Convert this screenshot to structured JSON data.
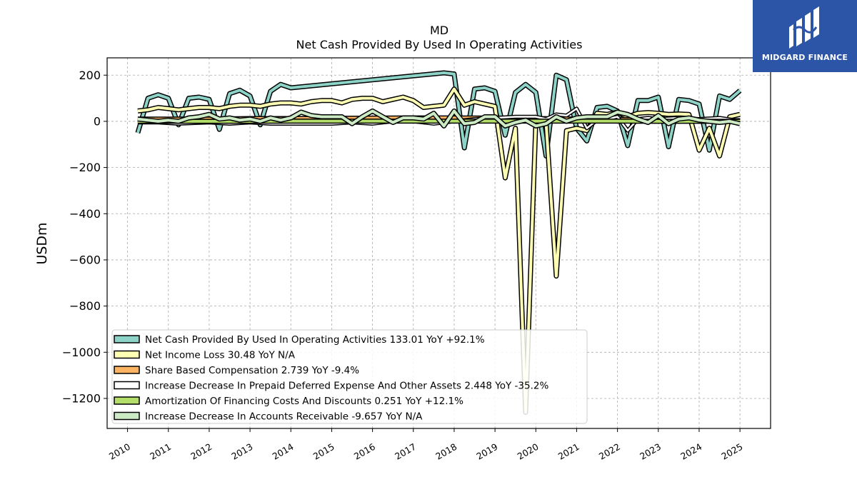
{
  "chart_data": {
    "type": "line",
    "title": "MD",
    "subtitle": "Net Cash Provided By Used In Operating Activities",
    "ylabel": "USDm",
    "xlabel": "",
    "xlim": [
      2009.5,
      2025.75
    ],
    "ylim": [
      -1330,
      275
    ],
    "grid": true,
    "legend_position": "lower-left",
    "x_ticks": [
      "2010",
      "2011",
      "2012",
      "2013",
      "2014",
      "2015",
      "2016",
      "2017",
      "2018",
      "2019",
      "2020",
      "2021",
      "2022",
      "2023",
      "2024",
      "2025"
    ],
    "y_ticks": [
      200,
      0,
      -200,
      -400,
      -600,
      -800,
      -1000,
      -1200
    ],
    "series": [
      {
        "name": "Net Cash Provided By Used In Operating Activities",
        "legend_label": "Net Cash Provided By Used In Operating Activities  133.01 YoY +92.1%",
        "color": "#8dd3c7",
        "width": 4,
        "points": [
          [
            2010.25,
            -50
          ],
          [
            2010.5,
            100
          ],
          [
            2010.75,
            115
          ],
          [
            2011.0,
            100
          ],
          [
            2011.25,
            -15
          ],
          [
            2011.5,
            100
          ],
          [
            2011.75,
            105
          ],
          [
            2012.0,
            95
          ],
          [
            2012.25,
            -35
          ],
          [
            2012.5,
            120
          ],
          [
            2012.75,
            135
          ],
          [
            2013.0,
            110
          ],
          [
            2013.25,
            -15
          ],
          [
            2013.5,
            130
          ],
          [
            2013.75,
            160
          ],
          [
            2014.0,
            145
          ],
          [
            2017.75,
            210
          ],
          [
            2018.0,
            205
          ],
          [
            2018.25,
            -115
          ],
          [
            2018.5,
            140
          ],
          [
            2018.75,
            145
          ],
          [
            2019.0,
            130
          ],
          [
            2019.25,
            -60
          ],
          [
            2019.5,
            125
          ],
          [
            2019.75,
            160
          ],
          [
            2020.0,
            125
          ],
          [
            2020.25,
            -150
          ],
          [
            2020.5,
            200
          ],
          [
            2020.75,
            180
          ],
          [
            2021.0,
            -30
          ],
          [
            2021.25,
            -85
          ],
          [
            2021.5,
            60
          ],
          [
            2021.75,
            65
          ],
          [
            2022.0,
            45
          ],
          [
            2022.25,
            -105
          ],
          [
            2022.5,
            90
          ],
          [
            2022.75,
            90
          ],
          [
            2023.0,
            105
          ],
          [
            2023.25,
            -110
          ],
          [
            2023.5,
            95
          ],
          [
            2023.75,
            90
          ],
          [
            2024.0,
            75
          ],
          [
            2024.25,
            -125
          ],
          [
            2024.5,
            110
          ],
          [
            2024.75,
            95
          ],
          [
            2025.0,
            133
          ]
        ]
      },
      {
        "name": "Net Income Loss",
        "legend_label": "Net Income Loss  30.48 YoY N/A",
        "color": "#ffffb3",
        "width": 4,
        "points": [
          [
            2010.25,
            45
          ],
          [
            2010.5,
            50
          ],
          [
            2010.75,
            60
          ],
          [
            2011.0,
            55
          ],
          [
            2011.25,
            50
          ],
          [
            2011.5,
            55
          ],
          [
            2011.75,
            60
          ],
          [
            2012.0,
            60
          ],
          [
            2012.25,
            55
          ],
          [
            2012.5,
            65
          ],
          [
            2012.75,
            70
          ],
          [
            2013.0,
            70
          ],
          [
            2013.25,
            65
          ],
          [
            2013.5,
            75
          ],
          [
            2013.75,
            80
          ],
          [
            2014.0,
            80
          ],
          [
            2014.25,
            75
          ],
          [
            2014.5,
            85
          ],
          [
            2014.75,
            90
          ],
          [
            2015.0,
            90
          ],
          [
            2015.25,
            80
          ],
          [
            2015.5,
            95
          ],
          [
            2015.75,
            100
          ],
          [
            2016.0,
            100
          ],
          [
            2016.25,
            85
          ],
          [
            2016.5,
            95
          ],
          [
            2016.75,
            105
          ],
          [
            2017.0,
            90
          ],
          [
            2017.25,
            60
          ],
          [
            2017.5,
            65
          ],
          [
            2017.75,
            70
          ],
          [
            2018.0,
            140
          ],
          [
            2018.25,
            70
          ],
          [
            2018.5,
            85
          ],
          [
            2018.75,
            75
          ],
          [
            2019.0,
            65
          ],
          [
            2019.25,
            -245
          ],
          [
            2019.5,
            -30
          ],
          [
            2019.75,
            -1260
          ],
          [
            2020.0,
            0
          ],
          [
            2020.25,
            -5
          ],
          [
            2020.5,
            -670
          ],
          [
            2020.75,
            -40
          ],
          [
            2021.0,
            -30
          ],
          [
            2021.25,
            -40
          ],
          [
            2021.5,
            35
          ],
          [
            2021.75,
            30
          ],
          [
            2022.0,
            40
          ],
          [
            2022.25,
            20
          ],
          [
            2022.5,
            35
          ],
          [
            2022.75,
            38
          ],
          [
            2023.0,
            35
          ],
          [
            2023.25,
            30
          ],
          [
            2023.5,
            32
          ],
          [
            2023.75,
            30
          ],
          [
            2024.0,
            -125
          ],
          [
            2024.25,
            -30
          ],
          [
            2024.5,
            -150
          ],
          [
            2024.75,
            20
          ],
          [
            2025.0,
            30
          ]
        ]
      },
      {
        "name": "Share Based Compensation",
        "legend_label": "Share Based Compensation  2.739 YoY -9.4%",
        "color": "#fdb462",
        "width": 4,
        "points": [
          [
            2010.25,
            10
          ],
          [
            2011.0,
            10
          ],
          [
            2012.0,
            10
          ],
          [
            2013.0,
            12
          ],
          [
            2014.0,
            12
          ],
          [
            2015.0,
            13
          ],
          [
            2016.0,
            14
          ],
          [
            2017.0,
            15
          ],
          [
            2018.0,
            15
          ],
          [
            2019.0,
            14
          ],
          [
            2020.0,
            12
          ],
          [
            2021.0,
            10
          ],
          [
            2022.0,
            8
          ],
          [
            2023.0,
            6
          ],
          [
            2024.0,
            4
          ],
          [
            2025.0,
            3
          ]
        ]
      },
      {
        "name": "Increase Decrease In Prepaid Deferred Expense And Other Assets",
        "legend_label": "Increase Decrease In Prepaid Deferred Expense And Other Assets  2.448 YoY -35.2%",
        "color": "#ffffff",
        "width": 2.5,
        "points": [
          [
            2010.25,
            -5
          ],
          [
            2010.75,
            -5
          ],
          [
            2011.25,
            -10
          ],
          [
            2012.0,
            -5
          ],
          [
            2012.5,
            -10
          ],
          [
            2013.0,
            -5
          ],
          [
            2013.5,
            -10
          ],
          [
            2014.0,
            -10
          ],
          [
            2014.5,
            -10
          ],
          [
            2015.0,
            -10
          ],
          [
            2015.5,
            -5
          ],
          [
            2016.0,
            -10
          ],
          [
            2016.5,
            0
          ],
          [
            2017.0,
            0
          ],
          [
            2017.5,
            -10
          ],
          [
            2018.0,
            0
          ],
          [
            2018.5,
            10
          ],
          [
            2019.0,
            15
          ],
          [
            2019.5,
            20
          ],
          [
            2020.0,
            20
          ],
          [
            2020.25,
            10
          ],
          [
            2020.5,
            30
          ],
          [
            2020.75,
            25
          ],
          [
            2021.0,
            55
          ],
          [
            2021.25,
            -30
          ],
          [
            2021.5,
            5
          ],
          [
            2021.75,
            10
          ],
          [
            2022.0,
            20
          ],
          [
            2022.25,
            -40
          ],
          [
            2022.5,
            10
          ],
          [
            2022.75,
            15
          ],
          [
            2023.0,
            10
          ],
          [
            2023.5,
            15
          ],
          [
            2024.0,
            10
          ],
          [
            2024.5,
            15
          ],
          [
            2025.0,
            2
          ]
        ]
      },
      {
        "name": "Amortization Of Financing Costs And Discounts",
        "legend_label": "Amortization Of Financing Costs And Discounts  0.251 YoY +12.1%",
        "color": "#b3de69",
        "width": 4,
        "points": [
          [
            2010.25,
            0
          ],
          [
            2011.0,
            0
          ],
          [
            2012.0,
            0
          ],
          [
            2013.0,
            0
          ],
          [
            2014.0,
            1
          ],
          [
            2015.0,
            1
          ],
          [
            2016.0,
            1
          ],
          [
            2017.0,
            1
          ],
          [
            2018.0,
            1
          ],
          [
            2019.0,
            1
          ],
          [
            2020.0,
            1
          ],
          [
            2021.0,
            1
          ],
          [
            2022.0,
            1
          ],
          [
            2023.0,
            0
          ],
          [
            2024.0,
            0
          ],
          [
            2025.0,
            0
          ]
        ]
      },
      {
        "name": "Increase Decrease In Accounts Receivable",
        "legend_label": "Increase Decrease In Accounts Receivable  -9.657 YoY N/A",
        "color": "#ccebc5",
        "width": 4,
        "points": [
          [
            2010.25,
            10
          ],
          [
            2010.5,
            5
          ],
          [
            2010.75,
            0
          ],
          [
            2011.0,
            5
          ],
          [
            2011.25,
            0
          ],
          [
            2011.5,
            15
          ],
          [
            2011.75,
            20
          ],
          [
            2012.0,
            30
          ],
          [
            2012.25,
            10
          ],
          [
            2012.5,
            15
          ],
          [
            2012.75,
            5
          ],
          [
            2013.0,
            10
          ],
          [
            2013.25,
            0
          ],
          [
            2013.5,
            15
          ],
          [
            2013.75,
            5
          ],
          [
            2014.0,
            15
          ],
          [
            2014.25,
            40
          ],
          [
            2014.5,
            25
          ],
          [
            2014.75,
            20
          ],
          [
            2015.0,
            20
          ],
          [
            2015.25,
            20
          ],
          [
            2015.5,
            -10
          ],
          [
            2015.75,
            20
          ],
          [
            2016.0,
            45
          ],
          [
            2016.25,
            20
          ],
          [
            2016.5,
            -5
          ],
          [
            2016.75,
            15
          ],
          [
            2017.0,
            15
          ],
          [
            2017.25,
            10
          ],
          [
            2017.5,
            35
          ],
          [
            2017.75,
            -20
          ],
          [
            2018.0,
            45
          ],
          [
            2018.25,
            -10
          ],
          [
            2018.5,
            -5
          ],
          [
            2018.75,
            20
          ],
          [
            2019.0,
            20
          ],
          [
            2019.25,
            -20
          ],
          [
            2019.5,
            -5
          ],
          [
            2019.75,
            5
          ],
          [
            2020.0,
            -20
          ],
          [
            2020.25,
            -10
          ],
          [
            2020.5,
            20
          ],
          [
            2020.75,
            0
          ],
          [
            2021.0,
            15
          ],
          [
            2021.25,
            20
          ],
          [
            2021.5,
            20
          ],
          [
            2021.75,
            20
          ],
          [
            2022.0,
            40
          ],
          [
            2022.25,
            30
          ],
          [
            2022.5,
            10
          ],
          [
            2022.75,
            -5
          ],
          [
            2023.0,
            25
          ],
          [
            2023.25,
            -10
          ],
          [
            2023.5,
            10
          ],
          [
            2023.75,
            15
          ],
          [
            2024.0,
            5
          ],
          [
            2024.25,
            0
          ],
          [
            2024.5,
            -5
          ],
          [
            2024.75,
            0
          ],
          [
            2025.0,
            -10
          ]
        ]
      }
    ]
  },
  "logo": {
    "text": "MIDGARD FINANCE",
    "background": "#2c55a8"
  }
}
